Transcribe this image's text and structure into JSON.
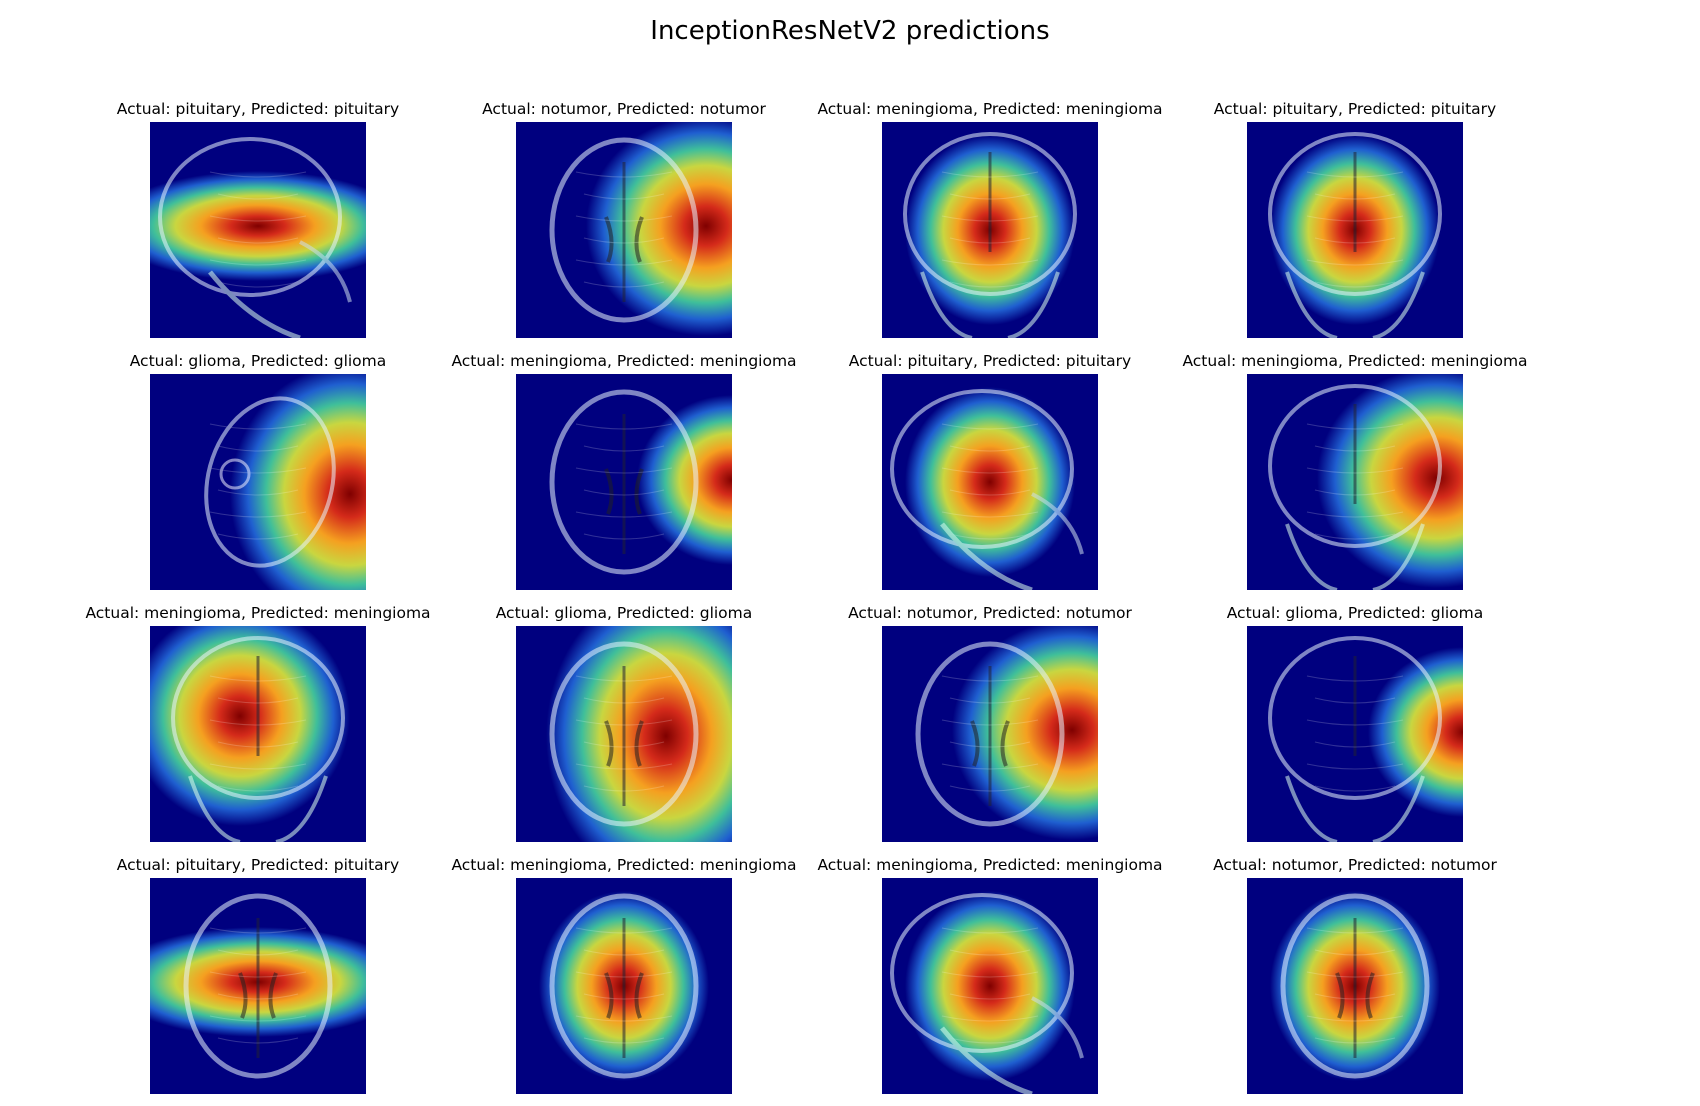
{
  "figure": {
    "title": "InceptionResNetV2 predictions"
  },
  "panels": [
    {
      "title": "Actual: pituitary, Predicted: pituitary",
      "view": "sagittal",
      "heat": "horizontal-center"
    },
    {
      "title": "Actual: notumor, Predicted: notumor",
      "view": "axial",
      "heat": "right"
    },
    {
      "title": "Actual: meningioma, Predicted: meningioma",
      "view": "coronal",
      "heat": "center"
    },
    {
      "title": "Actual: pituitary, Predicted: pituitary",
      "view": "coronal",
      "heat": "center"
    },
    {
      "title": "Actual: glioma, Predicted: glioma",
      "view": "axial-tilted",
      "heat": "bottom-right"
    },
    {
      "title": "Actual: meningioma, Predicted: meningioma",
      "view": "axial",
      "heat": "right-edge"
    },
    {
      "title": "Actual: pituitary, Predicted: pituitary",
      "view": "sagittal",
      "heat": "center"
    },
    {
      "title": "Actual: meningioma, Predicted: meningioma",
      "view": "coronal",
      "heat": "right"
    },
    {
      "title": "Actual: meningioma, Predicted: meningioma",
      "view": "coronal",
      "heat": "left-center"
    },
    {
      "title": "Actual: glioma, Predicted: glioma",
      "view": "axial",
      "heat": "right-half"
    },
    {
      "title": "Actual: notumor, Predicted: notumor",
      "view": "axial",
      "heat": "right"
    },
    {
      "title": "Actual: glioma, Predicted: glioma",
      "view": "coronal",
      "heat": "right-edge"
    },
    {
      "title": "Actual: pituitary, Predicted: pituitary",
      "view": "axial",
      "heat": "horizontal-center"
    },
    {
      "title": "Actual: meningioma, Predicted: meningioma",
      "view": "axial",
      "heat": "center"
    },
    {
      "title": "Actual: meningioma, Predicted: meningioma",
      "view": "sagittal",
      "heat": "center"
    },
    {
      "title": "Actual: notumor, Predicted: notumor",
      "view": "axial",
      "heat": "center"
    }
  ]
}
